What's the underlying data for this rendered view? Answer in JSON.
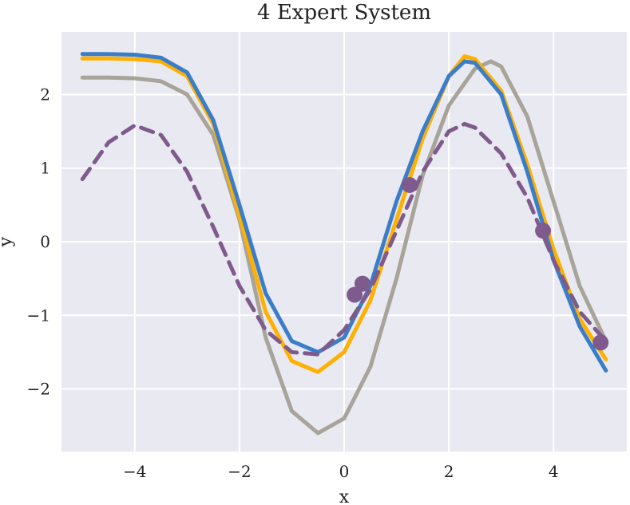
{
  "chart_data": {
    "type": "line",
    "title": "4 Expert System",
    "xlabel": "x",
    "ylabel": "y",
    "xlim": [
      -5.4,
      5.4
    ],
    "ylim": [
      -2.85,
      2.85
    ],
    "x_ticks": [
      -4,
      -2,
      0,
      2,
      4
    ],
    "x_tick_labels": [
      "−4",
      "−2",
      "0",
      "2",
      "4"
    ],
    "y_ticks": [
      -2,
      -1,
      0,
      1,
      2
    ],
    "y_tick_labels": [
      "−2",
      "−1",
      "0",
      "1",
      "2"
    ],
    "grid": true,
    "colors": {
      "background": "#e9e9f1",
      "grid": "#ffffff",
      "gray_line": "#a8a49a",
      "orange_line": "#ffb000",
      "blue_line": "#3a7dc9",
      "purple_line": "#7e5b8c"
    },
    "series": [
      {
        "style": "solid-gray",
        "x": [
          -5.0,
          -4.5,
          -4.0,
          -3.5,
          -3.0,
          -2.5,
          -2.0,
          -1.5,
          -1.0,
          -0.5,
          0.0,
          0.5,
          1.0,
          1.5,
          2.0,
          2.5,
          2.8,
          3.0,
          3.5,
          4.0,
          4.5,
          5.0
        ],
        "y": [
          2.23,
          2.23,
          2.22,
          2.18,
          2.0,
          1.45,
          0.3,
          -1.3,
          -2.3,
          -2.6,
          -2.4,
          -1.7,
          -0.5,
          0.9,
          1.85,
          2.35,
          2.45,
          2.38,
          1.7,
          0.55,
          -0.6,
          -1.35
        ]
      },
      {
        "style": "solid-orange",
        "x": [
          -5.0,
          -4.5,
          -4.0,
          -3.5,
          -3.0,
          -2.5,
          -2.0,
          -1.5,
          -1.0,
          -0.5,
          0.0,
          0.5,
          1.0,
          1.5,
          2.0,
          2.3,
          2.5,
          3.0,
          3.5,
          4.0,
          4.5,
          5.0
        ],
        "y": [
          2.49,
          2.49,
          2.48,
          2.45,
          2.25,
          1.6,
          0.35,
          -0.95,
          -1.62,
          -1.77,
          -1.5,
          -0.8,
          0.3,
          1.4,
          2.25,
          2.52,
          2.48,
          2.05,
          1.05,
          -0.1,
          -1.05,
          -1.6
        ]
      },
      {
        "style": "solid-blue",
        "x": [
          -5.0,
          -4.5,
          -4.0,
          -3.5,
          -3.0,
          -2.5,
          -2.0,
          -1.5,
          -1.0,
          -0.5,
          0.0,
          0.5,
          1.0,
          1.5,
          2.0,
          2.3,
          2.5,
          3.0,
          3.5,
          4.0,
          4.5,
          5.0
        ],
        "y": [
          2.55,
          2.55,
          2.54,
          2.5,
          2.3,
          1.65,
          0.5,
          -0.7,
          -1.35,
          -1.5,
          -1.3,
          -0.6,
          0.55,
          1.5,
          2.25,
          2.45,
          2.43,
          2.0,
          0.95,
          -0.25,
          -1.15,
          -1.75
        ]
      },
      {
        "style": "dashed-purple",
        "x": [
          -5.0,
          -4.5,
          -4.0,
          -3.5,
          -3.0,
          -2.5,
          -2.0,
          -1.5,
          -1.0,
          -0.5,
          0.0,
          0.5,
          1.0,
          1.5,
          2.0,
          2.3,
          2.5,
          3.0,
          3.5,
          4.0,
          4.5,
          5.0
        ],
        "y": [
          0.85,
          1.35,
          1.58,
          1.45,
          0.95,
          0.2,
          -0.6,
          -1.2,
          -1.5,
          -1.53,
          -1.2,
          -0.65,
          0.15,
          0.95,
          1.5,
          1.6,
          1.55,
          1.2,
          0.6,
          -0.25,
          -0.95,
          -1.35
        ]
      },
      {
        "style": "points-purple",
        "x": [
          0.2,
          0.35,
          1.25,
          3.8,
          4.9
        ],
        "y": [
          -0.72,
          -0.57,
          0.77,
          0.15,
          -1.37
        ]
      }
    ]
  }
}
